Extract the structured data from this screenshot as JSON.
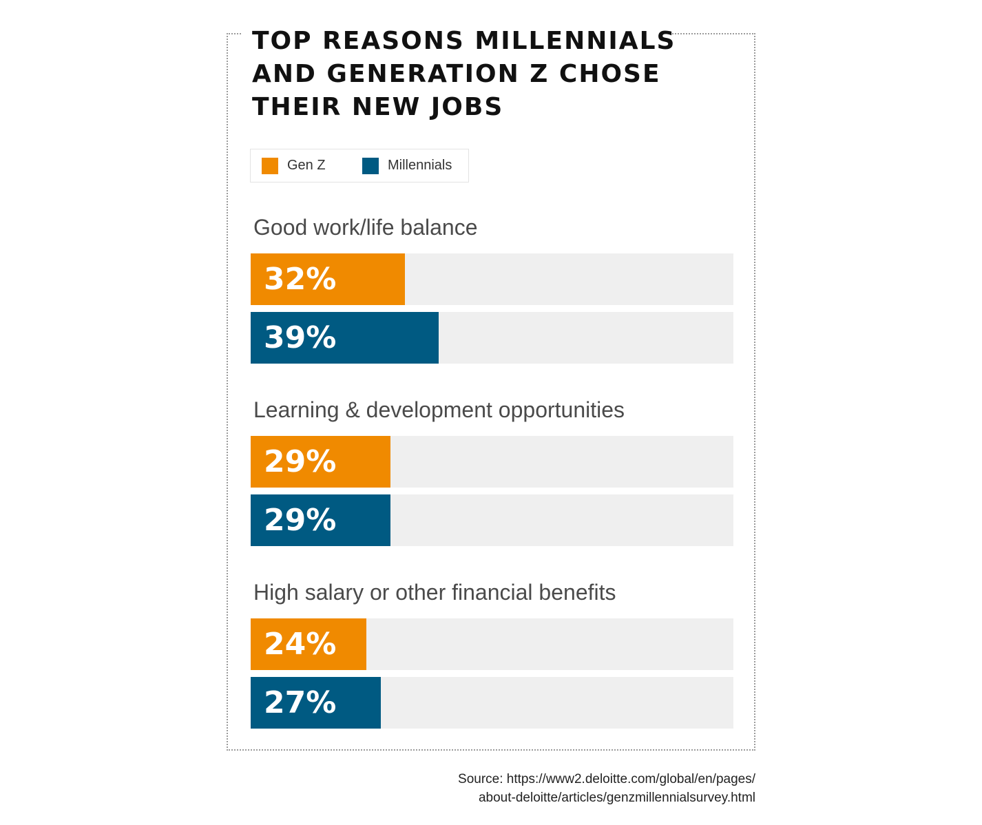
{
  "chart_data": {
    "type": "bar",
    "orientation": "horizontal",
    "title_lines": [
      "TOP REASONS MILLENNIALS",
      "AND GENERATION Z CHOSE",
      "THEIR NEW JOBS"
    ],
    "categories": [
      "Good work/life balance",
      "Learning & development opportunities",
      "High salary or other financial benefits"
    ],
    "series": [
      {
        "name": "Gen Z",
        "color": "#F08A00",
        "values": [
          32,
          29,
          24
        ],
        "labels": [
          "32%",
          "29%",
          "24%"
        ]
      },
      {
        "name": "Millennials",
        "color": "#005A82",
        "values": [
          39,
          29,
          27
        ],
        "labels": [
          "39%",
          "29%",
          "27%"
        ]
      }
    ],
    "xlim": [
      0,
      100
    ],
    "track_color": "#EFEFEF",
    "legend_position": "top-left",
    "grid": false
  },
  "source": {
    "line1": "Source: https://www2.deloitte.com/global/en/pages/",
    "line2": "about-deloitte/articles/genzmillennialsurvey.html"
  }
}
